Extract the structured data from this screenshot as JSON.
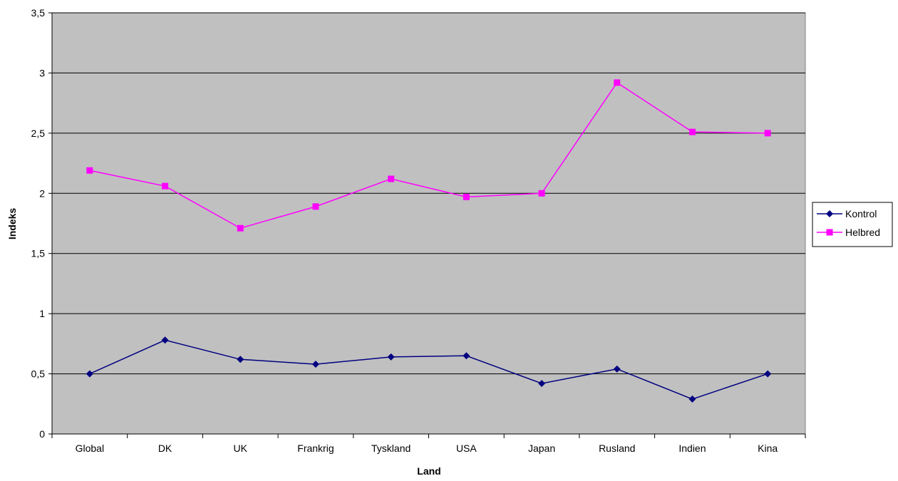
{
  "chart_data": {
    "type": "line",
    "title": "",
    "xlabel": "Land",
    "ylabel": "Indeks",
    "categories": [
      "Global",
      "DK",
      "UK",
      "Frankrig",
      "Tyskland",
      "USA",
      "Japan",
      "Rusland",
      "Indien",
      "Kina"
    ],
    "ylim": [
      0,
      3.5
    ],
    "yticks": [
      "0",
      "0,5",
      "1",
      "1,5",
      "2",
      "2,5",
      "3",
      "3,5"
    ],
    "yticks_values": [
      0,
      0.5,
      1,
      1.5,
      2,
      2.5,
      3,
      3.5
    ],
    "grid": true,
    "legend_position": "right",
    "plot_background": "#c0c0c0",
    "series": [
      {
        "name": "Kontrol",
        "color": "#000080",
        "marker": "diamond",
        "values": [
          0.5,
          0.78,
          0.62,
          0.58,
          0.64,
          0.65,
          0.42,
          0.54,
          0.29,
          0.5
        ]
      },
      {
        "name": "Helbred",
        "color": "#ff00ff",
        "marker": "square",
        "values": [
          2.19,
          2.06,
          1.71,
          1.89,
          2.12,
          1.97,
          2.0,
          2.92,
          2.51,
          2.5
        ]
      }
    ]
  }
}
